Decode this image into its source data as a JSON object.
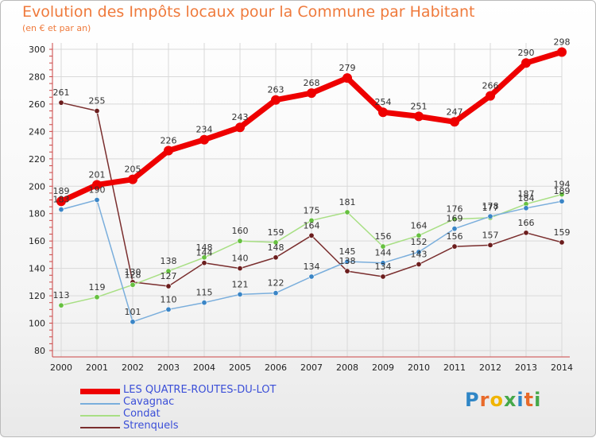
{
  "title": "Evolution des Impôts locaux pour la Commune par Habitant",
  "subtitle": "(en € et par an)",
  "logo": [
    "P",
    "r",
    "o",
    "x",
    "i",
    "t",
    "i"
  ],
  "colors": {
    "title": "#ef7a3c",
    "legend_text": "#3b4fd8",
    "grid": "#d9d9d9",
    "axis": "#cc4444",
    "logo": [
      "#2f86c6",
      "#e86a2a",
      "#f0b400",
      "#45a849",
      "#2f86c6",
      "#e86a2a",
      "#45a849"
    ]
  },
  "chart_data": {
    "type": "line",
    "title": "Evolution des Impôts locaux pour la Commune par Habitant",
    "subtitle": "(en € et par an)",
    "xlabel": "",
    "ylabel": "",
    "x": [
      "2000",
      "2001",
      "2002",
      "2003",
      "2004",
      "2005",
      "2006",
      "2007",
      "2008",
      "2009",
      "2010",
      "2011",
      "2012",
      "2013",
      "2014"
    ],
    "ylim": [
      80,
      300
    ],
    "yticks": [
      80,
      100,
      120,
      140,
      160,
      180,
      200,
      220,
      240,
      260,
      280,
      300
    ],
    "grid": true,
    "legend_position": "bottom-left",
    "series": [
      {
        "name": "LES QUATRE-ROUTES-DU-LOT",
        "color": "#ee0000",
        "dot": "#ee0000",
        "width": 7,
        "values": [
          189,
          201,
          205,
          226,
          234,
          243,
          263,
          268,
          279,
          254,
          251,
          247,
          266,
          290,
          298
        ]
      },
      {
        "name": "Cavagnac",
        "color": "#7aaedc",
        "dot": "#3a85c6",
        "width": 1.5,
        "values": [
          183,
          190,
          101,
          110,
          115,
          121,
          122,
          134,
          145,
          144,
          152,
          169,
          178,
          184,
          189
        ]
      },
      {
        "name": "Condat",
        "color": "#a8df84",
        "dot": "#66c040",
        "width": 1.5,
        "values": [
          113,
          119,
          128,
          138,
          148,
          160,
          159,
          175,
          181,
          156,
          164,
          176,
          177,
          187,
          194
        ]
      },
      {
        "name": "Strenquels",
        "color": "#7a2e2e",
        "dot": "#6b1d1d",
        "width": 1.5,
        "values": [
          261,
          255,
          130,
          127,
          144,
          140,
          148,
          164,
          138,
          134,
          143,
          156,
          157,
          166,
          159
        ]
      }
    ],
    "data_labels": {
      "LES QUATRE-ROUTES-DU-LOT": [
        "189",
        "201",
        "205",
        "226",
        "234",
        "243",
        "263",
        "268",
        "279",
        "254",
        "251",
        "247",
        "266",
        "290",
        "298"
      ],
      "Cavagnac": [
        "183",
        "190",
        "101",
        "110",
        "115",
        "121",
        "122",
        "134",
        "145",
        "144",
        "152",
        "169",
        "178",
        "184",
        "189"
      ],
      "Condat": [
        "113",
        "119",
        "128",
        "138",
        "148",
        "160",
        "159",
        "175",
        "181",
        "156",
        "164",
        "176",
        "177",
        "187",
        "194"
      ],
      "Strenquels": [
        "261",
        "255",
        "130",
        "127",
        "144",
        "140",
        "148",
        "164",
        "138",
        "134",
        "143",
        "156",
        "157",
        "166",
        "159"
      ]
    }
  }
}
